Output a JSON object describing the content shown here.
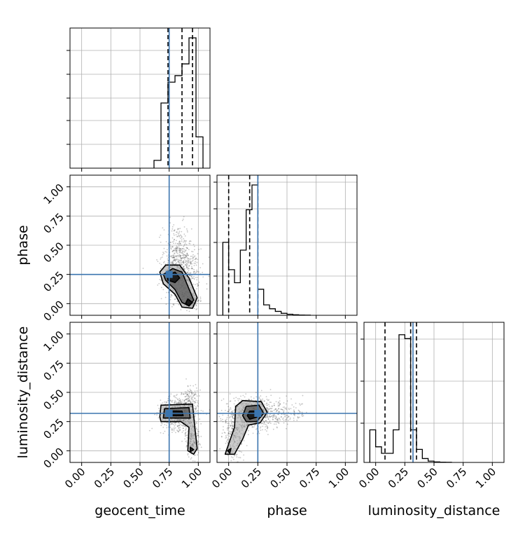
{
  "figure": {
    "type": "corner-plot",
    "parameters": [
      "geocent_time",
      "phase",
      "luminosity_distance"
    ]
  },
  "colors": {
    "truth": "#3b75af",
    "histogram": "#000000",
    "grid": "#b0b0b0",
    "samples": "#000000",
    "contour_fill_dark": "#000000",
    "contour_fill_mid": "#555555",
    "contour_fill_light": "#a0a0a0"
  },
  "chart_data": [
    {
      "type": "histogram",
      "panel": "geocent_time",
      "xlim": [
        -0.1,
        1.1
      ],
      "bins_x": [
        0.62,
        0.68,
        0.74,
        0.8,
        0.86,
        0.92,
        0.98,
        1.04
      ],
      "bin_heights": [
        0.06,
        0.5,
        0.66,
        0.71,
        0.8,
        1.0,
        0.24
      ],
      "quantiles": [
        0.74,
        0.86,
        0.95
      ],
      "truth": 0.75,
      "grid": true
    },
    {
      "type": "histogram",
      "panel": "phase",
      "xlim": [
        -0.1,
        1.1
      ],
      "bins_x": [
        -0.05,
        0.0,
        0.05,
        0.1,
        0.15,
        0.2,
        0.25,
        0.3,
        0.35,
        0.4,
        0.45,
        0.5,
        0.55,
        0.6,
        0.65,
        0.7
      ],
      "bin_heights": [
        0.56,
        0.35,
        0.25,
        0.5,
        0.81,
        1.0,
        0.2,
        0.08,
        0.05,
        0.03,
        0.015,
        0.008,
        0.004,
        0.002,
        0.001
      ],
      "quantiles": [
        0.0,
        0.18,
        0.25
      ],
      "truth": 0.25,
      "ytick_labels": [
        "0.00",
        "0.25",
        "0.50",
        "0.75",
        "1.00"
      ],
      "ylabel": "phase",
      "grid": true
    },
    {
      "type": "histogram",
      "panel": "luminosity_distance",
      "xlim": [
        -0.1,
        1.1
      ],
      "bins_x": [
        -0.05,
        0.0,
        0.05,
        0.1,
        0.15,
        0.2,
        0.25,
        0.3,
        0.35,
        0.4,
        0.45,
        0.5,
        0.55,
        0.6,
        0.65
      ],
      "bin_heights": [
        0.25,
        0.12,
        0.07,
        0.07,
        0.25,
        0.98,
        0.95,
        0.25,
        0.1,
        0.03,
        0.01,
        0.004,
        0.002,
        0.001
      ],
      "quantiles": [
        0.08,
        0.3,
        0.35
      ],
      "truth": 0.32,
      "xtick_labels": [
        "0.00",
        "0.25",
        "0.50",
        "0.75",
        "1.00"
      ],
      "xlabel": "luminosity_distance",
      "grid": true
    },
    {
      "type": "scatter-contour",
      "panel": "geocent_time vs phase",
      "xlim": [
        -0.1,
        1.1
      ],
      "ylim": [
        -0.1,
        1.1
      ],
      "truth": [
        0.75,
        0.25
      ],
      "sample_cloud": [
        {
          "cx": 0.85,
          "cy": 0.25,
          "sx": 0.08,
          "sy": 0.11,
          "n": 600
        },
        {
          "cx": 0.82,
          "cy": 0.45,
          "sx": 0.06,
          "sy": 0.12,
          "n": 250
        },
        {
          "cx": 0.93,
          "cy": 0.03,
          "sx": 0.04,
          "sy": 0.04,
          "n": 150
        }
      ],
      "contours": [
        [
          [
            0.67,
            0.27
          ],
          [
            0.72,
            0.33
          ],
          [
            0.84,
            0.33
          ],
          [
            0.92,
            0.22
          ],
          [
            0.99,
            0.05
          ],
          [
            0.95,
            -0.04
          ],
          [
            0.86,
            -0.03
          ],
          [
            0.8,
            0.08
          ],
          [
            0.7,
            0.17
          ]
        ],
        [
          [
            0.7,
            0.25
          ],
          [
            0.78,
            0.3
          ],
          [
            0.86,
            0.27
          ],
          [
            0.91,
            0.15
          ],
          [
            0.96,
            0.03
          ],
          [
            0.92,
            -0.02
          ],
          [
            0.86,
            0.01
          ],
          [
            0.8,
            0.12
          ],
          [
            0.72,
            0.2
          ]
        ],
        [
          [
            0.73,
            0.24
          ],
          [
            0.8,
            0.27
          ],
          [
            0.84,
            0.22
          ],
          [
            0.8,
            0.18
          ],
          [
            0.74,
            0.2
          ]
        ],
        [
          [
            0.91,
            0.04
          ],
          [
            0.95,
            0.01
          ],
          [
            0.92,
            -0.02
          ],
          [
            0.89,
            0.0
          ]
        ]
      ],
      "ytick_labels": [
        "0.00",
        "0.25",
        "0.50",
        "0.75",
        "1.00"
      ],
      "ylabel": "phase",
      "grid": true
    },
    {
      "type": "scatter-contour",
      "panel": "geocent_time vs luminosity_distance",
      "xlim": [
        -0.1,
        1.1
      ],
      "ylim": [
        -0.1,
        1.1
      ],
      "truth": [
        0.75,
        0.32
      ],
      "sample_cloud": [
        {
          "cx": 0.84,
          "cy": 0.32,
          "sx": 0.08,
          "sy": 0.07,
          "n": 700
        },
        {
          "cx": 0.95,
          "cy": 0.1,
          "sx": 0.03,
          "sy": 0.08,
          "n": 200
        },
        {
          "cx": 0.93,
          "cy": 0.45,
          "sx": 0.03,
          "sy": 0.06,
          "n": 100
        }
      ],
      "contours": [
        [
          [
            0.67,
            0.29
          ],
          [
            0.68,
            0.39
          ],
          [
            0.95,
            0.4
          ],
          [
            0.97,
            0.2
          ],
          [
            0.99,
            0.02
          ],
          [
            0.96,
            -0.03
          ],
          [
            0.91,
            0.0
          ],
          [
            0.92,
            0.2
          ],
          [
            0.85,
            0.25
          ],
          [
            0.68,
            0.25
          ]
        ],
        [
          [
            0.7,
            0.28
          ],
          [
            0.71,
            0.36
          ],
          [
            0.92,
            0.37
          ],
          [
            0.93,
            0.28
          ],
          [
            0.85,
            0.28
          ],
          [
            0.72,
            0.28
          ]
        ],
        [
          [
            0.74,
            0.3
          ],
          [
            0.75,
            0.34
          ],
          [
            0.86,
            0.34
          ],
          [
            0.87,
            0.3
          ]
        ],
        [
          [
            0.93,
            0.03
          ],
          [
            0.96,
            0.01
          ],
          [
            0.93,
            -0.01
          ]
        ]
      ],
      "xtick_labels": [
        "0.00",
        "0.25",
        "0.50",
        "0.75",
        "1.00"
      ],
      "ytick_labels": [
        "0.00",
        "0.25",
        "0.50",
        "0.75",
        "1.00"
      ],
      "xlabel": "geocent_time",
      "ylabel": "luminosity_distance",
      "grid": true
    },
    {
      "type": "scatter-contour",
      "panel": "phase vs luminosity_distance",
      "xlim": [
        -0.1,
        1.1
      ],
      "ylim": [
        -0.1,
        1.1
      ],
      "truth": [
        0.25,
        0.32
      ],
      "sample_cloud": [
        {
          "cx": 0.2,
          "cy": 0.32,
          "sx": 0.12,
          "sy": 0.07,
          "n": 700
        },
        {
          "cx": 0.05,
          "cy": 0.12,
          "sx": 0.05,
          "sy": 0.1,
          "n": 200
        },
        {
          "cx": 0.45,
          "cy": 0.32,
          "sx": 0.12,
          "sy": 0.05,
          "n": 150
        }
      ],
      "contours": [
        [
          [
            -0.02,
            0.0
          ],
          [
            0.05,
            0.2
          ],
          [
            0.06,
            0.38
          ],
          [
            0.12,
            0.43
          ],
          [
            0.28,
            0.42
          ],
          [
            0.33,
            0.33
          ],
          [
            0.27,
            0.24
          ],
          [
            0.17,
            0.22
          ],
          [
            0.12,
            0.1
          ],
          [
            0.05,
            -0.03
          ],
          [
            -0.03,
            -0.03
          ]
        ],
        [
          [
            0.12,
            0.3
          ],
          [
            0.15,
            0.38
          ],
          [
            0.26,
            0.39
          ],
          [
            0.3,
            0.32
          ],
          [
            0.24,
            0.25
          ],
          [
            0.15,
            0.25
          ]
        ],
        [
          [
            0.16,
            0.3
          ],
          [
            0.18,
            0.34
          ],
          [
            0.24,
            0.34
          ],
          [
            0.25,
            0.29
          ],
          [
            0.18,
            0.27
          ]
        ],
        [
          [
            -0.01,
            0.0
          ],
          [
            0.02,
            0.02
          ],
          [
            0.01,
            -0.02
          ]
        ]
      ],
      "xtick_labels": [
        "0.00",
        "0.25",
        "0.50",
        "0.75",
        "1.00"
      ],
      "xlabel": "phase",
      "grid": true
    }
  ]
}
